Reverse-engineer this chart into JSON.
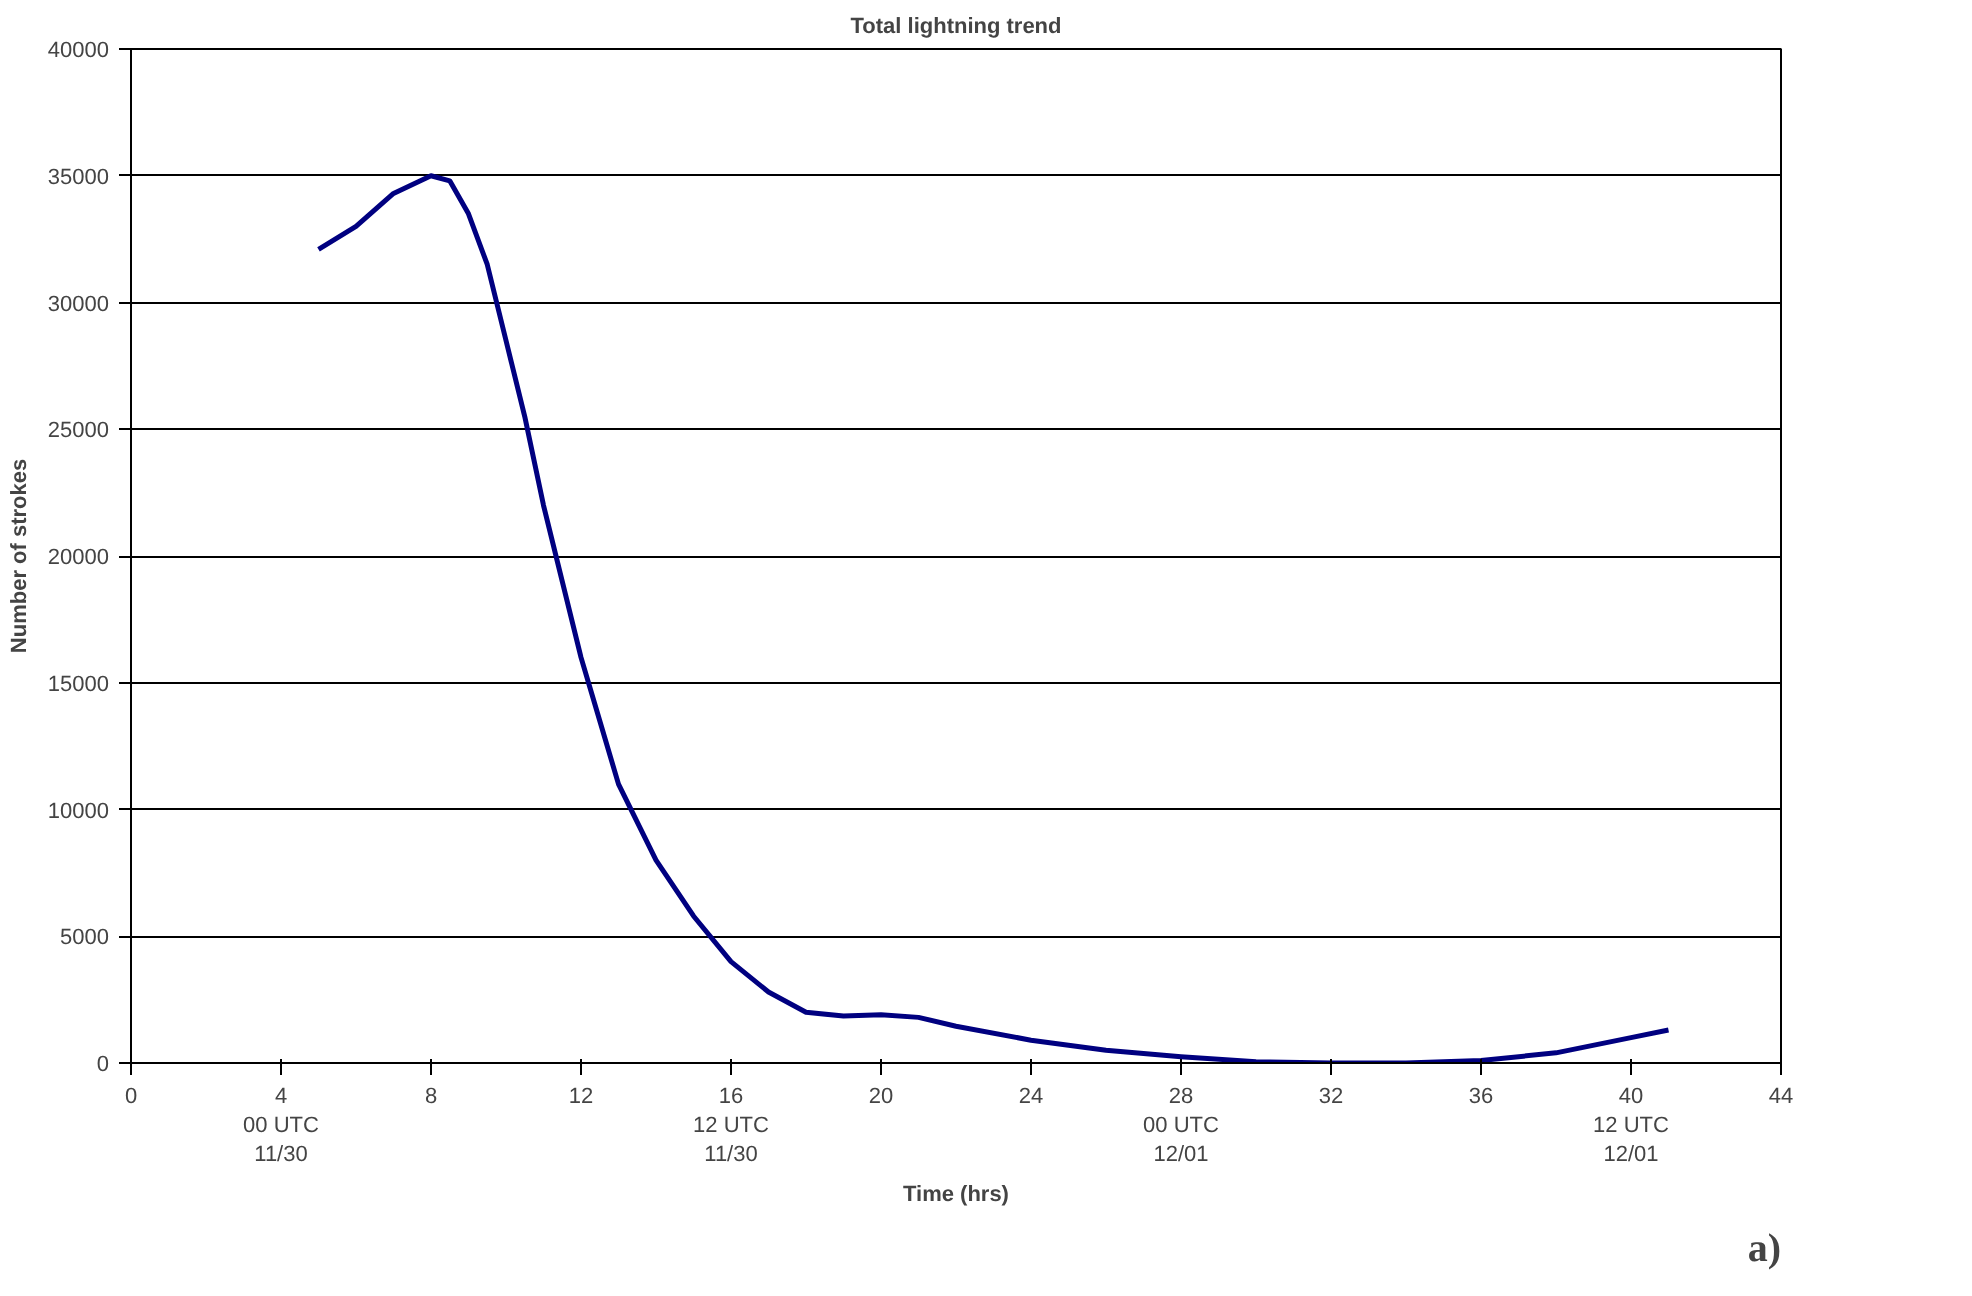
{
  "chart_data": {
    "type": "line",
    "title": "Total lightning trend",
    "xlabel": "Time (hrs)",
    "ylabel": "Number of strokes",
    "xlim": [
      0,
      44
    ],
    "ylim": [
      0,
      40000
    ],
    "xticks": [
      0,
      {
        "value": 4,
        "label": "4\n00 UTC\n11/30"
      },
      8,
      12,
      {
        "value": 16,
        "label": "16\n12 UTC\n11/30"
      },
      20,
      24,
      {
        "value": 28,
        "label": "28\n00 UTC\n12/01"
      },
      32,
      36,
      {
        "value": 40,
        "label": "40\n12 UTC\n12/01"
      },
      44
    ],
    "yticks": [
      0,
      5000,
      10000,
      15000,
      20000,
      25000,
      30000,
      35000,
      40000
    ],
    "grid": "y",
    "marker": "none",
    "line_style": "solid",
    "annotations": [
      "a)"
    ],
    "series": [
      {
        "color": "#000080",
        "x": [
          5,
          6,
          7,
          8,
          8.5,
          9,
          9.5,
          10,
          10.5,
          11,
          11.5,
          12,
          12.5,
          13,
          14,
          15,
          16,
          17,
          18,
          19,
          20,
          21,
          22,
          24,
          26,
          28,
          30,
          32,
          34,
          36,
          38,
          40,
          41
        ],
        "values": [
          32100,
          33000,
          34300,
          35000,
          34800,
          33500,
          31500,
          28500,
          25500,
          22000,
          19000,
          16000,
          13500,
          11000,
          8000,
          5800,
          4000,
          2800,
          2000,
          1850,
          1900,
          1800,
          1450,
          900,
          500,
          250,
          50,
          0,
          0,
          100,
          400,
          1000,
          1300
        ]
      }
    ]
  }
}
